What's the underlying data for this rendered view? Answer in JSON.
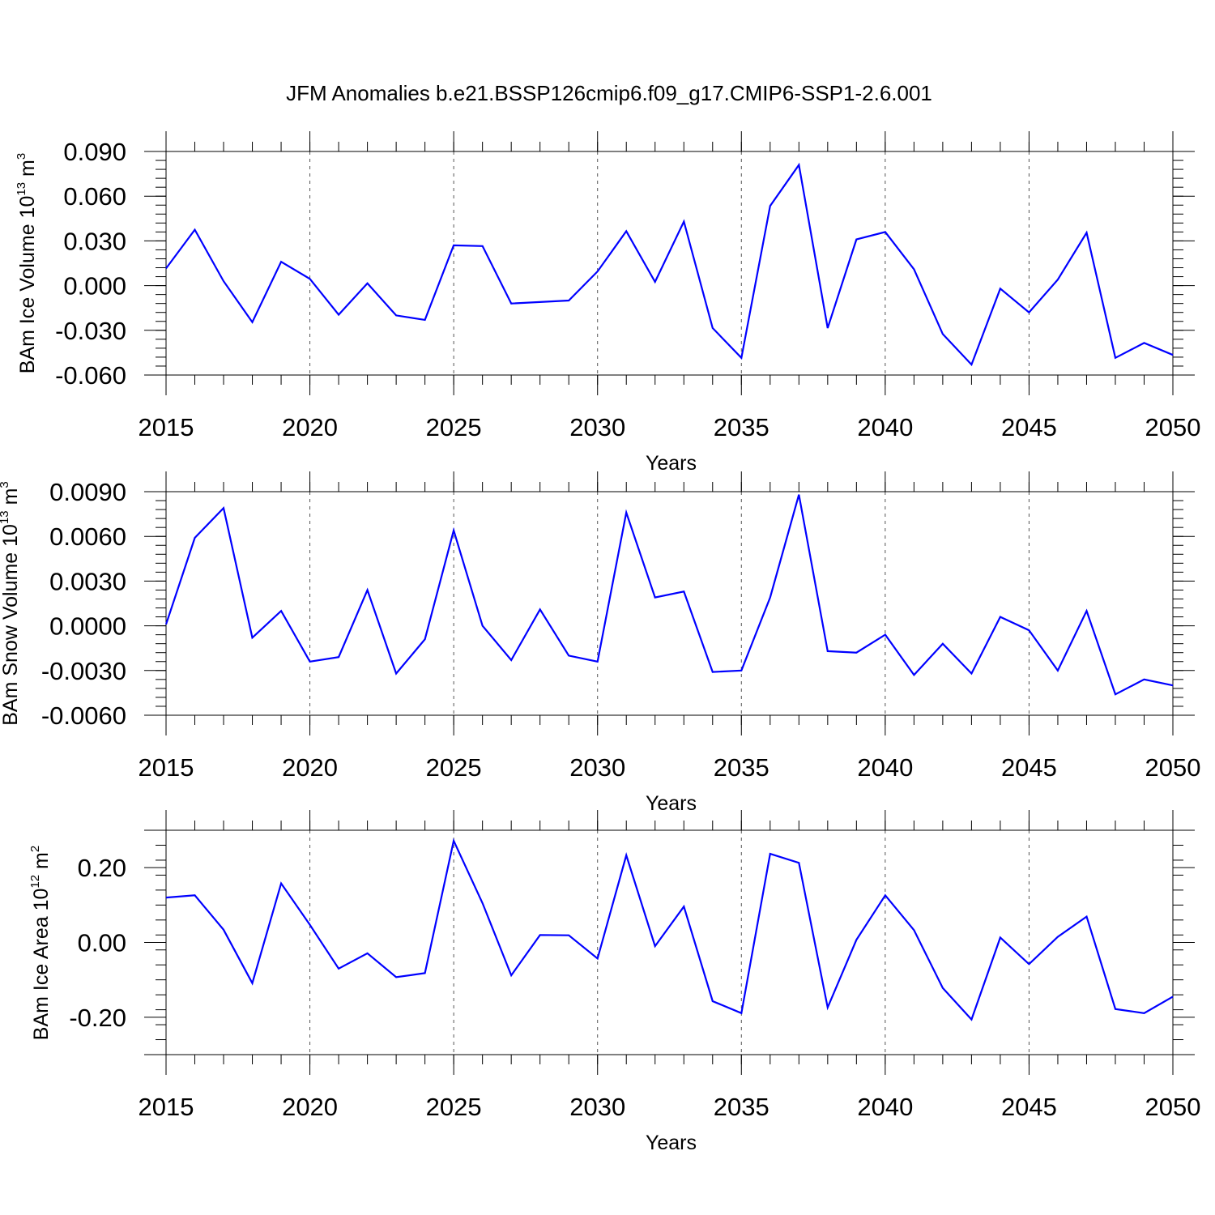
{
  "title": "JFM Anomalies b.e21.BSSP126cmip6.f09_g17.CMIP6-SSP1-2.6.001",
  "line_color": "#0000ff",
  "chart_data": [
    {
      "type": "line",
      "xlabel": "Years",
      "ylabel": {
        "text": "BAm Ice Volume 10",
        "exp": "13",
        "unit": " m",
        "unit_exp": "3"
      },
      "xlim": [
        2015,
        2050
      ],
      "ylim": [
        -0.06,
        0.09
      ],
      "yticks": [
        "0.090",
        "0.060",
        "0.030",
        "0.000",
        "-0.030",
        "-0.060"
      ],
      "ytick_values": [
        0.09,
        0.06,
        0.03,
        0.0,
        -0.03,
        -0.06
      ],
      "xticks": [
        "2015",
        "2020",
        "2025",
        "2030",
        "2035",
        "2040",
        "2045",
        "2050"
      ],
      "xtick_values": [
        2015,
        2020,
        2025,
        2030,
        2035,
        2040,
        2045,
        2050
      ],
      "grid": "vertical-dashed",
      "x": [
        2015,
        2016,
        2017,
        2018,
        2019,
        2020,
        2021,
        2022,
        2023,
        2024,
        2025,
        2026,
        2027,
        2029,
        2030,
        2031,
        2032,
        2033,
        2034,
        2035,
        2036,
        2037,
        2038,
        2039,
        2040,
        2041,
        2042,
        2043,
        2044,
        2045,
        2046,
        2047,
        2048,
        2049,
        2050
      ],
      "series": [
        {
          "values": [
            0.0115,
            0.0375,
            0.003,
            -0.0245,
            0.016,
            0.0045,
            -0.0195,
            0.0015,
            -0.02,
            -0.023,
            0.027,
            0.0265,
            -0.012,
            -0.01,
            0.0095,
            0.0365,
            0.0025,
            0.043,
            -0.0285,
            -0.0485,
            0.0535,
            0.081,
            -0.0285,
            0.031,
            0.036,
            0.011,
            -0.0325,
            -0.053,
            -0.002,
            -0.018,
            0.004,
            0.0355,
            -0.0485,
            -0.0385,
            -0.0465
          ]
        }
      ]
    },
    {
      "type": "line",
      "xlabel": "Years",
      "ylabel": {
        "text": "BAm Snow Volume 10",
        "exp": "13",
        "unit": " m",
        "unit_exp": "3"
      },
      "xlim": [
        2015,
        2050
      ],
      "ylim": [
        -0.006,
        0.009
      ],
      "yticks": [
        "0.0090",
        "0.0060",
        "0.0030",
        "0.0000",
        "-0.0030",
        "-0.0060"
      ],
      "ytick_values": [
        0.009,
        0.006,
        0.003,
        0.0,
        -0.003,
        -0.006
      ],
      "xticks": [
        "2015",
        "2020",
        "2025",
        "2030",
        "2035",
        "2040",
        "2045",
        "2050"
      ],
      "xtick_values": [
        2015,
        2020,
        2025,
        2030,
        2035,
        2040,
        2045,
        2050
      ],
      "grid": "vertical-dashed",
      "x": [
        2015,
        2016,
        2017,
        2018,
        2019,
        2020,
        2021,
        2022,
        2023,
        2024,
        2025,
        2026,
        2027,
        2028,
        2029,
        2030,
        2031,
        2032,
        2033,
        2034,
        2035,
        2036,
        2037,
        2038,
        2039,
        2040,
        2041,
        2042,
        2043,
        2044,
        2045,
        2046,
        2047,
        2048,
        2049,
        2050
      ],
      "series": [
        {
          "values": [
            0.0001,
            0.0059,
            0.0079,
            -0.0008,
            0.001,
            -0.0024,
            -0.0021,
            0.0024,
            -0.0032,
            -0.0009,
            0.0064,
            0.0,
            -0.0023,
            0.0011,
            -0.002,
            -0.0024,
            0.0076,
            0.0019,
            0.0023,
            -0.0031,
            -0.003,
            0.0019,
            0.0088,
            -0.0017,
            -0.0018,
            -0.0006,
            -0.0033,
            -0.0012,
            -0.0032,
            0.0006,
            -0.0003,
            -0.003,
            0.001,
            -0.0046,
            -0.0036,
            -0.004
          ]
        }
      ]
    },
    {
      "type": "line",
      "xlabel": "Years",
      "ylabel": {
        "text": "BAm Ice Area 10",
        "exp": "12",
        "unit": " m",
        "unit_exp": "2"
      },
      "xlim": [
        2015,
        2050
      ],
      "ylim": [
        -0.3,
        0.3
      ],
      "yticks": [
        "0.20",
        "0.00",
        "-0.20"
      ],
      "ytick_values": [
        0.2,
        0.0,
        -0.2
      ],
      "xticks": [
        "2015",
        "2020",
        "2025",
        "2030",
        "2035",
        "2040",
        "2045",
        "2050"
      ],
      "xtick_values": [
        2015,
        2020,
        2025,
        2030,
        2035,
        2040,
        2045,
        2050
      ],
      "grid": "vertical-dashed",
      "x": [
        2015,
        2016,
        2017,
        2018,
        2019,
        2020,
        2021,
        2022,
        2023,
        2024,
        2025,
        2026,
        2027,
        2028,
        2029,
        2030,
        2031,
        2032,
        2033,
        2034,
        2035,
        2036,
        2037,
        2038,
        2039,
        2040,
        2041,
        2042,
        2043,
        2044,
        2045,
        2046,
        2047,
        2048,
        2049,
        2050
      ],
      "series": [
        {
          "values": [
            0.12,
            0.126,
            0.034,
            -0.109,
            0.158,
            0.047,
            -0.07,
            -0.029,
            -0.093,
            -0.082,
            0.272,
            0.105,
            -0.088,
            0.02,
            0.019,
            -0.043,
            0.233,
            -0.01,
            0.096,
            -0.157,
            -0.189,
            0.237,
            0.213,
            -0.174,
            0.007,
            0.126,
            0.033,
            -0.122,
            -0.206,
            0.013,
            -0.058,
            0.015,
            0.069,
            -0.178,
            -0.189,
            -0.145
          ]
        }
      ]
    }
  ]
}
